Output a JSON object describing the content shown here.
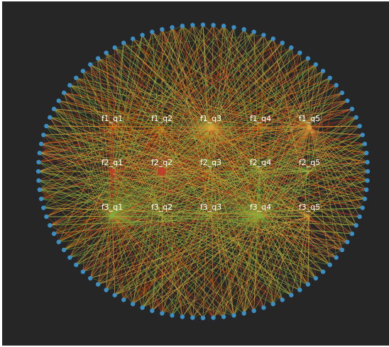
{
  "diagram": {
    "type": "radial-network",
    "background_color": "#262626",
    "node_color": "#3b8fc4",
    "outer_node_count": 100,
    "edge_colors": [
      "#c0392b",
      "#d35400",
      "#e2a13a",
      "#9fb040",
      "#7fae3c"
    ],
    "hubs": [
      {
        "id": "f1_q1",
        "label": "f1_q1"
      },
      {
        "id": "f1_q2",
        "label": "f1_q2"
      },
      {
        "id": "f1_q3",
        "label": "f1_q3"
      },
      {
        "id": "f1_q4",
        "label": "f1_q4"
      },
      {
        "id": "f1_q5",
        "label": "f1_q5"
      },
      {
        "id": "f2_q1",
        "label": "f2_q1"
      },
      {
        "id": "f2_q2",
        "label": "f2_q2"
      },
      {
        "id": "f2_q3",
        "label": "f2_q3"
      },
      {
        "id": "f2_q4",
        "label": "f2_q4"
      },
      {
        "id": "f2_q5",
        "label": "f2_q5"
      },
      {
        "id": "f3_q1",
        "label": "f3_q1"
      },
      {
        "id": "f3_q2",
        "label": "f3_q2"
      },
      {
        "id": "f3_q3",
        "label": "f3_q3"
      },
      {
        "id": "f3_q4",
        "label": "f3_q4"
      },
      {
        "id": "f3_q5",
        "label": "f3_q5"
      }
    ]
  }
}
